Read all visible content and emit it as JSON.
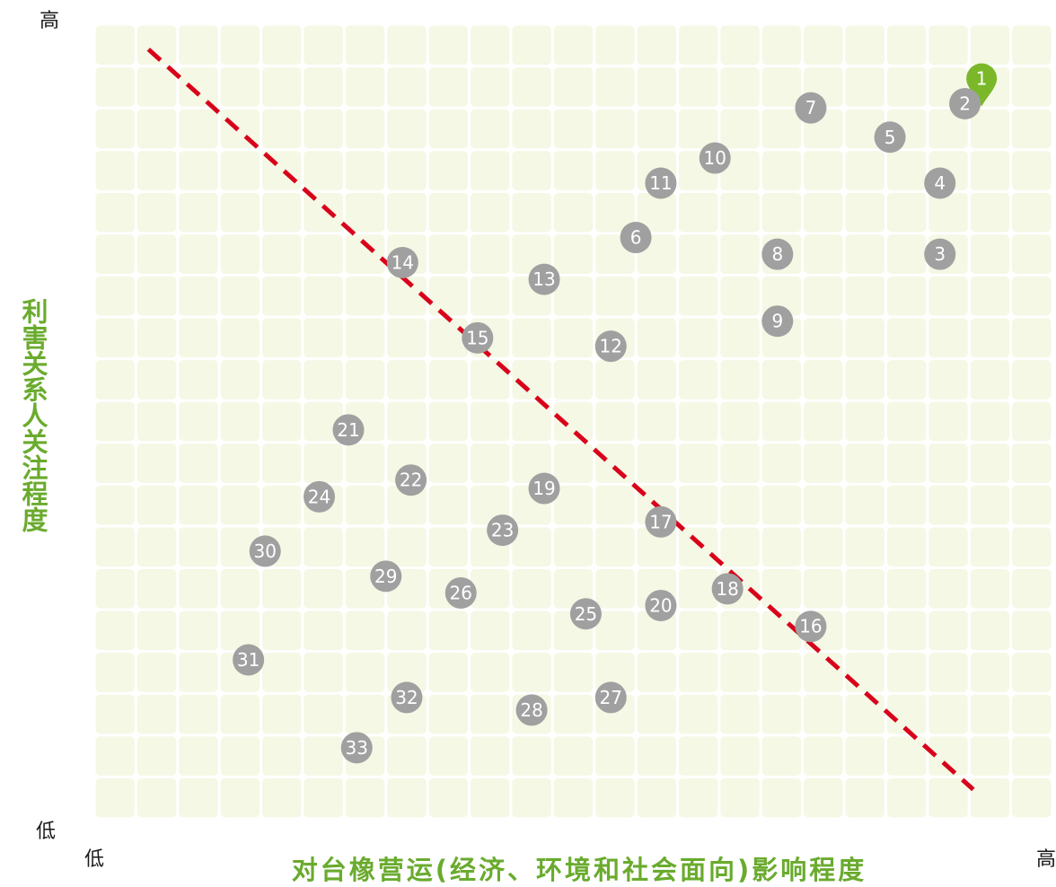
{
  "chart_data": {
    "type": "scatter",
    "title": "",
    "xlabel": "对台橡营运(经济、环境和社会面向)影响程度",
    "ylabel": "利害关系人关注程度",
    "x_low_label": "低",
    "x_high_label": "高",
    "y_low_label": "低",
    "y_high_label": "高",
    "xlim": [
      0,
      21
    ],
    "ylim": [
      0,
      19
    ],
    "grid": true,
    "colors": {
      "grid_cell": "#f4f8e4",
      "point": "#a0a0a0",
      "highlight": "#7ab829",
      "divider": "#d9001b",
      "axis_label": "#6aab2e"
    },
    "divider_line": {
      "style": "dashed",
      "from": [
        1.3,
        18.4
      ],
      "to": [
        21.1,
        0.7
      ]
    },
    "points": [
      {
        "label": "1",
        "x": 21.3,
        "y": 17.7,
        "highlight": true
      },
      {
        "label": "2",
        "x": 20.9,
        "y": 17.1
      },
      {
        "label": "3",
        "x": 20.3,
        "y": 13.5
      },
      {
        "label": "4",
        "x": 20.3,
        "y": 15.2
      },
      {
        "label": "5",
        "x": 19.1,
        "y": 16.3
      },
      {
        "label": "6",
        "x": 13.0,
        "y": 13.9
      },
      {
        "label": "7",
        "x": 17.2,
        "y": 17.0
      },
      {
        "label": "8",
        "x": 16.4,
        "y": 13.5
      },
      {
        "label": "9",
        "x": 16.4,
        "y": 11.9
      },
      {
        "label": "10",
        "x": 14.9,
        "y": 15.8
      },
      {
        "label": "11",
        "x": 13.6,
        "y": 15.2
      },
      {
        "label": "12",
        "x": 12.4,
        "y": 11.3
      },
      {
        "label": "13",
        "x": 10.8,
        "y": 12.9
      },
      {
        "label": "14",
        "x": 7.4,
        "y": 13.3
      },
      {
        "label": "15",
        "x": 9.2,
        "y": 11.5
      },
      {
        "label": "16",
        "x": 17.2,
        "y": 4.6
      },
      {
        "label": "17",
        "x": 13.6,
        "y": 7.1
      },
      {
        "label": "18",
        "x": 15.2,
        "y": 5.5
      },
      {
        "label": "19",
        "x": 10.8,
        "y": 7.9
      },
      {
        "label": "20",
        "x": 13.6,
        "y": 5.1
      },
      {
        "label": "21",
        "x": 6.1,
        "y": 9.3
      },
      {
        "label": "22",
        "x": 7.6,
        "y": 8.1
      },
      {
        "label": "23",
        "x": 9.8,
        "y": 6.9
      },
      {
        "label": "24",
        "x": 5.4,
        "y": 7.7
      },
      {
        "label": "25",
        "x": 11.8,
        "y": 4.9
      },
      {
        "label": "26",
        "x": 8.8,
        "y": 5.4
      },
      {
        "label": "27",
        "x": 12.4,
        "y": 2.9
      },
      {
        "label": "28",
        "x": 10.5,
        "y": 2.6
      },
      {
        "label": "29",
        "x": 7.0,
        "y": 5.8
      },
      {
        "label": "30",
        "x": 4.1,
        "y": 6.4
      },
      {
        "label": "31",
        "x": 3.7,
        "y": 3.8
      },
      {
        "label": "32",
        "x": 7.5,
        "y": 2.9
      },
      {
        "label": "33",
        "x": 6.3,
        "y": 1.7
      }
    ]
  }
}
